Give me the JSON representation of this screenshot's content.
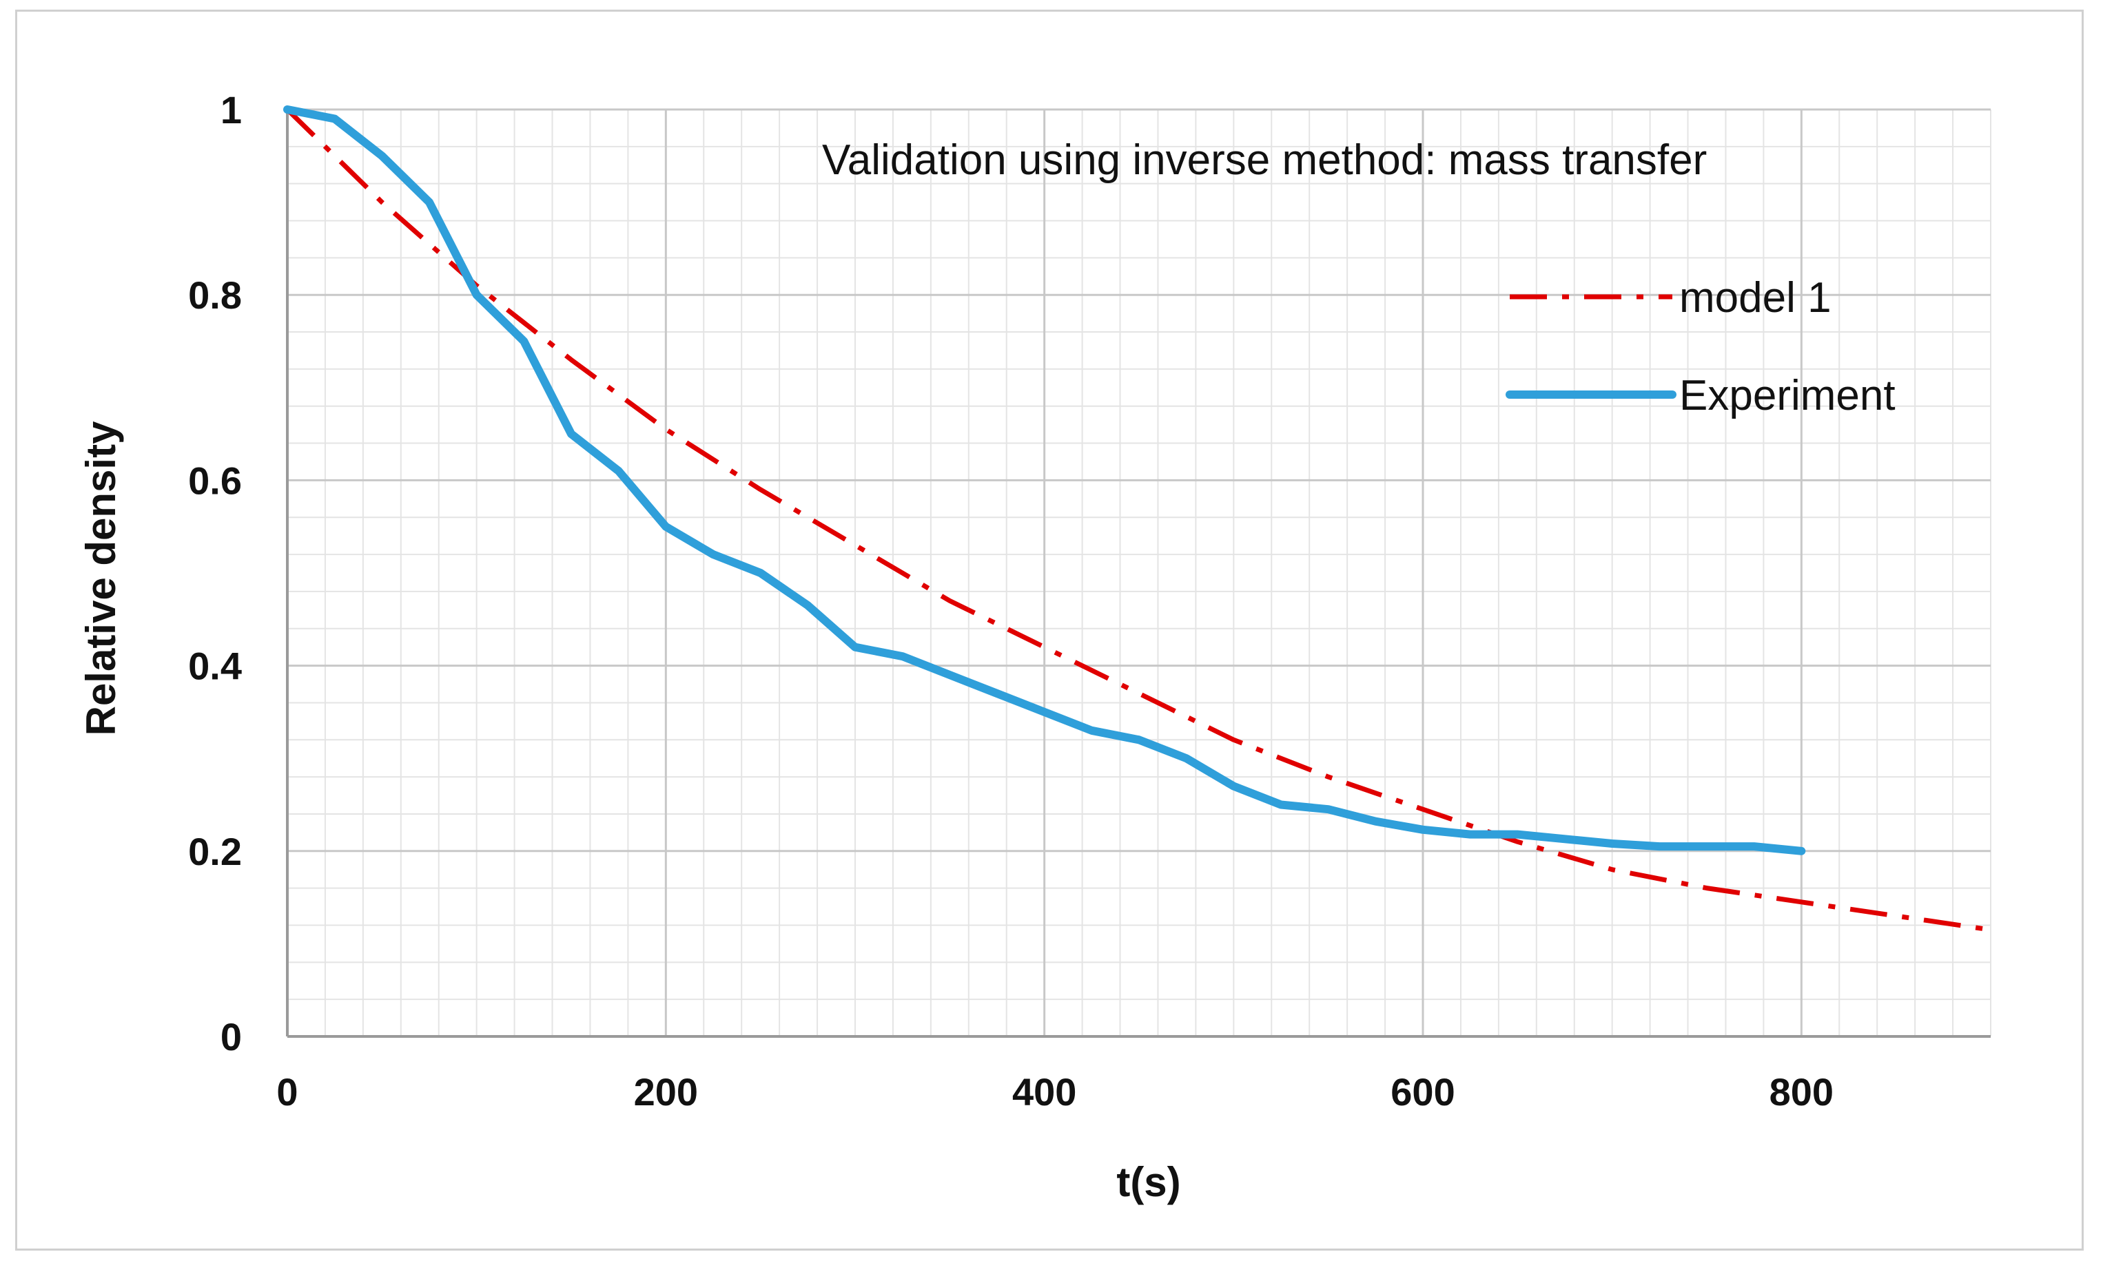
{
  "chart_data": {
    "type": "line",
    "title": "Validation  using inverse method: mass transfer",
    "xlabel": "t(s)",
    "ylabel": "Relative density",
    "xlim": [
      0,
      900
    ],
    "ylim": [
      0,
      1
    ],
    "x_ticks": [
      0,
      200,
      400,
      600,
      800
    ],
    "x_tick_labels": [
      "0",
      "200",
      "400",
      "600",
      "800"
    ],
    "y_ticks": [
      0,
      0.2,
      0.4,
      0.6,
      0.8,
      1
    ],
    "y_tick_labels": [
      "0",
      "0.2",
      "0.4",
      "0.6",
      "0.8",
      "1"
    ],
    "x_minor_step": 20,
    "y_minor_step": 0.04,
    "grid": true,
    "legend_position": "top-right",
    "series": [
      {
        "name": "model 1",
        "color": "#e00000",
        "style": "dash-dot",
        "x": [
          0,
          50,
          100,
          150,
          200,
          250,
          300,
          350,
          400,
          450,
          500,
          550,
          600,
          650,
          700,
          750,
          800,
          850,
          900
        ],
        "y": [
          1.0,
          0.9,
          0.81,
          0.73,
          0.655,
          0.59,
          0.53,
          0.47,
          0.42,
          0.37,
          0.32,
          0.28,
          0.245,
          0.21,
          0.18,
          0.16,
          0.145,
          0.13,
          0.115
        ]
      },
      {
        "name": "Experiment",
        "color": "#2f9fda",
        "style": "solid",
        "x": [
          0,
          25,
          50,
          75,
          100,
          125,
          150,
          175,
          200,
          225,
          250,
          275,
          300,
          325,
          350,
          375,
          400,
          425,
          450,
          475,
          500,
          525,
          550,
          575,
          600,
          625,
          650,
          675,
          700,
          725,
          750,
          775,
          800
        ],
        "y": [
          1.0,
          0.99,
          0.95,
          0.9,
          0.8,
          0.75,
          0.65,
          0.61,
          0.55,
          0.52,
          0.5,
          0.465,
          0.42,
          0.41,
          0.39,
          0.37,
          0.35,
          0.33,
          0.32,
          0.3,
          0.27,
          0.25,
          0.245,
          0.232,
          0.223,
          0.218,
          0.218,
          0.213,
          0.208,
          0.205,
          0.205,
          0.205,
          0.2
        ]
      }
    ]
  }
}
